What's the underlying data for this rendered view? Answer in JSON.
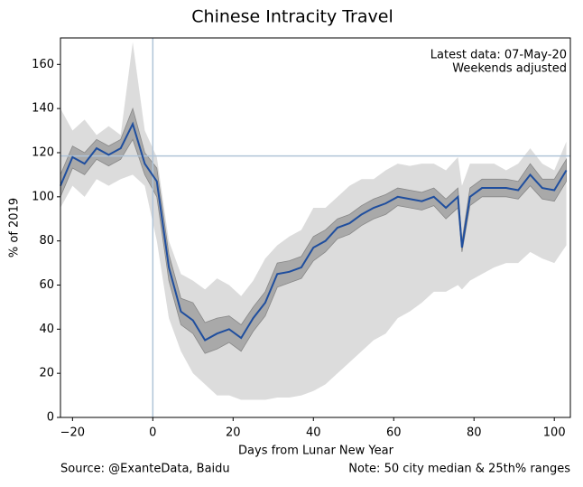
{
  "chart_data": {
    "type": "line",
    "title": "Chinese Intracity Travel",
    "x_label": "Days from Lunar New Year",
    "y_label": "% of 2019",
    "annotations": [
      "Latest data: 07-May-20",
      "Weekends adjusted"
    ],
    "source": "Source: @ExanteData, Baidu",
    "note": "Note: 50 city median & 25th% ranges",
    "x": [
      -23,
      -20,
      -17,
      -14,
      -11,
      -8,
      -5,
      -2,
      1,
      4,
      7,
      10,
      13,
      16,
      19,
      22,
      25,
      28,
      31,
      34,
      37,
      40,
      43,
      46,
      49,
      52,
      55,
      58,
      61,
      64,
      67,
      70,
      73,
      76,
      77,
      79,
      82,
      85,
      88,
      91,
      94,
      97,
      100,
      103
    ],
    "bands": [
      {
        "color": "#dcdcdc",
        "lower": [
          95,
          105,
          100,
          108,
          105,
          108,
          110,
          105,
          80,
          45,
          30,
          20,
          15,
          10,
          10,
          8,
          8,
          8,
          9,
          9,
          10,
          12,
          15,
          20,
          25,
          30,
          35,
          38,
          45,
          48,
          52,
          57,
          57,
          60,
          58,
          62,
          65,
          68,
          70,
          70,
          75,
          72,
          70,
          78
        ],
        "upper": [
          140,
          130,
          135,
          128,
          132,
          128,
          170,
          130,
          118,
          80,
          65,
          62,
          58,
          63,
          60,
          55,
          62,
          72,
          78,
          82,
          85,
          95,
          95,
          100,
          105,
          108,
          108,
          112,
          115,
          114,
          115,
          115,
          112,
          118,
          105,
          115,
          115,
          115,
          112,
          115,
          122,
          115,
          112,
          125
        ]
      },
      {
        "color": "#a9a9a9",
        "lower": [
          100,
          113,
          110,
          117,
          114,
          117,
          126,
          110,
          100,
          62,
          42,
          38,
          29,
          31,
          34,
          30,
          39,
          46,
          59,
          61,
          63,
          71,
          75,
          81,
          83,
          87,
          90,
          92,
          96,
          95,
          94,
          96,
          90,
          95,
          75,
          96,
          100,
          100,
          100,
          99,
          105,
          99,
          98,
          107
        ],
        "upper": [
          110,
          123,
          120,
          126,
          123,
          126,
          140,
          120,
          113,
          74,
          54,
          52,
          43,
          45,
          46,
          42,
          50,
          57,
          70,
          71,
          73,
          82,
          85,
          90,
          92,
          96,
          99,
          101,
          104,
          103,
          102,
          104,
          99,
          104,
          80,
          104,
          108,
          108,
          108,
          107,
          115,
          108,
          108,
          117
        ]
      }
    ],
    "series": [
      {
        "color": "#1f4e9e",
        "values": [
          105,
          118,
          115,
          122,
          119,
          122,
          133,
          115,
          107,
          68,
          48,
          44,
          35,
          38,
          40,
          36,
          45,
          52,
          65,
          66,
          68,
          77,
          80,
          86,
          88,
          92,
          95,
          97,
          100,
          99,
          98,
          100,
          95,
          100,
          77,
          100,
          104,
          104,
          104,
          103,
          110,
          104,
          103,
          112
        ]
      }
    ],
    "reference_lines": {
      "x": 0,
      "y": 118.5,
      "color": "#b0c4d8"
    },
    "xlim": [
      -23,
      104
    ],
    "ylim": [
      0,
      172
    ],
    "xticks": [
      {
        "value": -20,
        "label": "−20"
      },
      0,
      20,
      40,
      60,
      80,
      100
    ],
    "yticks": [
      0,
      20,
      40,
      60,
      80,
      100,
      120,
      140,
      160
    ]
  }
}
